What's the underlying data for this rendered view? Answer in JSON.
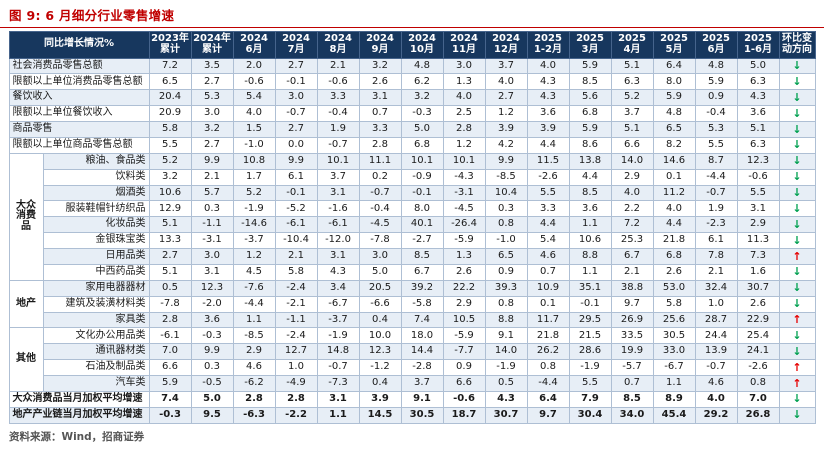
{
  "source": "资料来源：Wind，招商证券",
  "arrows": {
    "up": "↑",
    "down": "↓"
  },
  "colors": {
    "title_red": "#c00000",
    "header_bg": "#17375e",
    "stripe": "#e7eef6",
    "up_red": "#e60000",
    "down_green": "#00a050"
  },
  "chart_data": {
    "type": "table",
    "title": "图 9: 6 月细分行业零售增速",
    "corner_header": "同比增长情况%",
    "direction_header": "环比变动方向",
    "columns": [
      [
        "2023年",
        "累计"
      ],
      [
        "2024年",
        "累计"
      ],
      [
        "2024",
        "6月"
      ],
      [
        "2024",
        "7月"
      ],
      [
        "2024",
        "8月"
      ],
      [
        "2024",
        "9月"
      ],
      [
        "2024",
        "10月"
      ],
      [
        "2024",
        "11月"
      ],
      [
        "2024",
        "12月"
      ],
      [
        "2025",
        "1-2月"
      ],
      [
        "2025",
        "3月"
      ],
      [
        "2025",
        "4月"
      ],
      [
        "2025",
        "5月"
      ],
      [
        "2025",
        "6月"
      ],
      [
        "2025",
        "1-6月"
      ]
    ],
    "rows": [
      {
        "label": "社会消费品零售总额",
        "grouped": false,
        "bold": false,
        "dir": "down",
        "values": [
          "7.2",
          "3.5",
          "2.0",
          "2.7",
          "2.1",
          "3.2",
          "4.8",
          "3.0",
          "3.7",
          "4.0",
          "5.9",
          "5.1",
          "6.4",
          "4.8",
          "5.0"
        ]
      },
      {
        "label": "限额以上单位消费品零售总额",
        "grouped": false,
        "bold": false,
        "dir": "down",
        "values": [
          "6.5",
          "2.7",
          "-0.6",
          "-0.1",
          "-0.6",
          "2.6",
          "6.2",
          "1.3",
          "4.0",
          "4.3",
          "8.5",
          "6.3",
          "8.0",
          "5.9",
          "6.3"
        ]
      },
      {
        "label": "餐饮收入",
        "grouped": false,
        "bold": false,
        "dir": "down",
        "values": [
          "20.4",
          "5.3",
          "5.4",
          "3.0",
          "3.3",
          "3.1",
          "3.2",
          "4.0",
          "2.7",
          "4.3",
          "5.6",
          "5.2",
          "5.9",
          "0.9",
          "4.3"
        ]
      },
      {
        "label": "限额以上单位餐饮收入",
        "grouped": false,
        "bold": false,
        "dir": "down",
        "values": [
          "20.9",
          "3.0",
          "4.0",
          "-0.7",
          "-0.4",
          "0.7",
          "-0.3",
          "2.5",
          "1.2",
          "3.6",
          "6.8",
          "3.7",
          "4.8",
          "-0.4",
          "3.6"
        ]
      },
      {
        "label": "商品零售",
        "grouped": false,
        "bold": false,
        "dir": "down",
        "values": [
          "5.8",
          "3.2",
          "1.5",
          "2.7",
          "1.9",
          "3.3",
          "5.0",
          "2.8",
          "3.9",
          "3.9",
          "5.9",
          "5.1",
          "6.5",
          "5.3",
          "5.1"
        ]
      },
      {
        "label": "限额以上单位商品零售总额",
        "grouped": false,
        "bold": false,
        "dir": "down",
        "values": [
          "5.5",
          "2.7",
          "-1.0",
          "0.0",
          "-0.7",
          "2.8",
          "6.8",
          "1.2",
          "4.2",
          "4.4",
          "8.6",
          "6.6",
          "8.2",
          "5.5",
          "6.3"
        ]
      },
      {
        "label": "粮油、食品类",
        "grouped": true,
        "bold": false,
        "dir": "down",
        "group": {
          "label": "大众消费品",
          "span": 8
        },
        "values": [
          "5.2",
          "9.9",
          "10.8",
          "9.9",
          "10.1",
          "11.1",
          "10.1",
          "10.1",
          "9.9",
          "11.5",
          "13.8",
          "14.0",
          "14.6",
          "8.7",
          "12.3"
        ]
      },
      {
        "label": "饮料类",
        "grouped": true,
        "bold": false,
        "dir": "down",
        "values": [
          "3.2",
          "2.1",
          "1.7",
          "6.1",
          "3.7",
          "0.2",
          "-0.9",
          "-4.3",
          "-8.5",
          "-2.6",
          "4.4",
          "2.9",
          "0.1",
          "-4.4",
          "-0.6"
        ]
      },
      {
        "label": "烟酒类",
        "grouped": true,
        "bold": false,
        "dir": "down",
        "values": [
          "10.6",
          "5.7",
          "5.2",
          "-0.1",
          "3.1",
          "-0.7",
          "-0.1",
          "-3.1",
          "10.4",
          "5.5",
          "8.5",
          "4.0",
          "11.2",
          "-0.7",
          "5.5"
        ]
      },
      {
        "label": "服装鞋帽针纺织品",
        "grouped": true,
        "bold": false,
        "dir": "down",
        "values": [
          "12.9",
          "0.3",
          "-1.9",
          "-5.2",
          "-1.6",
          "-0.4",
          "8.0",
          "-4.5",
          "0.3",
          "3.3",
          "3.6",
          "2.2",
          "4.0",
          "1.9",
          "3.1"
        ]
      },
      {
        "label": "化妆品类",
        "grouped": true,
        "bold": false,
        "dir": "down",
        "values": [
          "5.1",
          "-1.1",
          "-14.6",
          "-6.1",
          "-6.1",
          "-4.5",
          "40.1",
          "-26.4",
          "0.8",
          "4.4",
          "1.1",
          "7.2",
          "4.4",
          "-2.3",
          "2.9"
        ]
      },
      {
        "label": "金银珠宝类",
        "grouped": true,
        "bold": false,
        "dir": "down",
        "values": [
          "13.3",
          "-3.1",
          "-3.7",
          "-10.4",
          "-12.0",
          "-7.8",
          "-2.7",
          "-5.9",
          "-1.0",
          "5.4",
          "10.6",
          "25.3",
          "21.8",
          "6.1",
          "11.3"
        ]
      },
      {
        "label": "日用品类",
        "grouped": true,
        "bold": false,
        "dir": "up",
        "values": [
          "2.7",
          "3.0",
          "1.2",
          "2.1",
          "3.1",
          "3.0",
          "8.5",
          "1.3",
          "6.5",
          "4.6",
          "8.8",
          "6.7",
          "6.8",
          "7.8",
          "7.3"
        ]
      },
      {
        "label": "中西药品类",
        "grouped": true,
        "bold": false,
        "dir": "down",
        "values": [
          "5.1",
          "3.1",
          "4.5",
          "5.8",
          "4.3",
          "5.0",
          "6.7",
          "2.6",
          "0.9",
          "0.7",
          "1.1",
          "2.1",
          "2.6",
          "2.1",
          "1.6"
        ]
      },
      {
        "label": "家用电器器材",
        "grouped": true,
        "bold": false,
        "dir": "down",
        "group": {
          "label": "地产",
          "span": 3
        },
        "values": [
          "0.5",
          "12.3",
          "-7.6",
          "-2.4",
          "3.4",
          "20.5",
          "39.2",
          "22.2",
          "39.3",
          "10.9",
          "35.1",
          "38.8",
          "53.0",
          "32.4",
          "30.7"
        ]
      },
      {
        "label": "建筑及装潢材料类",
        "grouped": true,
        "bold": false,
        "dir": "down",
        "values": [
          "-7.8",
          "-2.0",
          "-4.4",
          "-2.1",
          "-6.7",
          "-6.6",
          "-5.8",
          "2.9",
          "0.8",
          "0.1",
          "-0.1",
          "9.7",
          "5.8",
          "1.0",
          "2.6"
        ]
      },
      {
        "label": "家具类",
        "grouped": true,
        "bold": false,
        "dir": "up",
        "values": [
          "2.8",
          "3.6",
          "1.1",
          "-1.1",
          "-3.7",
          "0.4",
          "7.4",
          "10.5",
          "8.8",
          "11.7",
          "29.5",
          "26.9",
          "25.6",
          "28.7",
          "22.9"
        ]
      },
      {
        "label": "文化办公用品类",
        "grouped": true,
        "bold": false,
        "dir": "down",
        "group": {
          "label": "其他",
          "span": 4
        },
        "values": [
          "-6.1",
          "-0.3",
          "-8.5",
          "-2.4",
          "-1.9",
          "10.0",
          "18.0",
          "-5.9",
          "9.1",
          "21.8",
          "21.5",
          "33.5",
          "30.5",
          "24.4",
          "25.4"
        ]
      },
      {
        "label": "通讯器材类",
        "grouped": true,
        "bold": false,
        "dir": "down",
        "values": [
          "7.0",
          "9.9",
          "2.9",
          "12.7",
          "14.8",
          "12.3",
          "14.4",
          "-7.7",
          "14.0",
          "26.2",
          "28.6",
          "19.9",
          "33.0",
          "13.9",
          "24.1"
        ]
      },
      {
        "label": "石油及制品类",
        "grouped": true,
        "bold": false,
        "dir": "up",
        "values": [
          "6.6",
          "0.3",
          "4.6",
          "1.0",
          "-0.7",
          "-1.2",
          "-2.8",
          "0.9",
          "-1.9",
          "0.8",
          "-1.9",
          "-5.7",
          "-6.7",
          "-0.7",
          "-2.6"
        ]
      },
      {
        "label": "汽车类",
        "grouped": true,
        "bold": false,
        "dir": "up",
        "values": [
          "5.9",
          "-0.5",
          "-6.2",
          "-4.9",
          "-7.3",
          "0.4",
          "3.7",
          "6.6",
          "0.5",
          "-4.4",
          "5.5",
          "0.7",
          "1.1",
          "4.6",
          "0.8"
        ]
      },
      {
        "label": "大众消费品当月加权平均增速",
        "grouped": false,
        "bold": true,
        "dir": "down",
        "values": [
          "7.4",
          "5.0",
          "2.8",
          "2.8",
          "3.1",
          "3.9",
          "9.1",
          "-0.6",
          "4.3",
          "6.4",
          "7.9",
          "8.5",
          "8.9",
          "4.0",
          "7.0"
        ]
      },
      {
        "label": "地产产业链当月加权平均增速",
        "grouped": false,
        "bold": true,
        "dir": "down",
        "values": [
          "-0.3",
          "9.5",
          "-6.3",
          "-2.2",
          "1.1",
          "14.5",
          "30.5",
          "18.7",
          "30.7",
          "9.7",
          "30.4",
          "34.0",
          "45.4",
          "29.2",
          "26.8"
        ]
      }
    ]
  }
}
